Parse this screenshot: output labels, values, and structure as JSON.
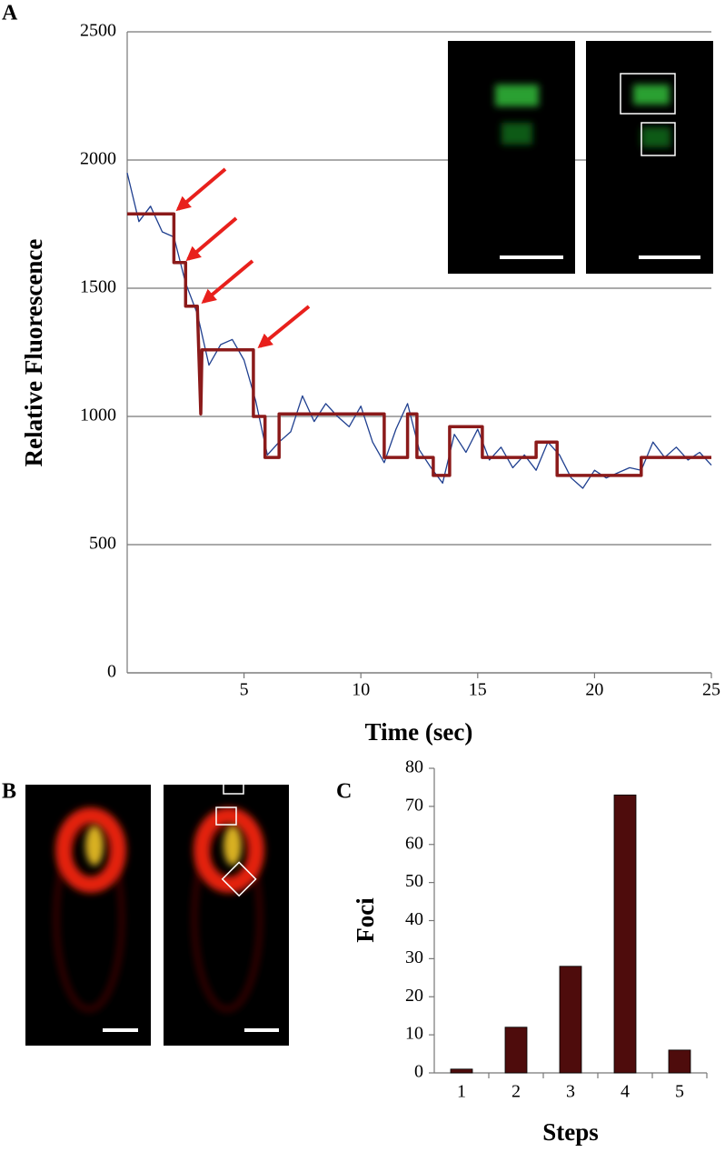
{
  "panels": [
    "A",
    "B",
    "C"
  ],
  "chart_data": [
    {
      "type": "line",
      "xlabel": "Time (sec)",
      "ylabel": "Relative Fluorescence",
      "xlim": [
        0,
        25
      ],
      "xticks": [
        5,
        10,
        15,
        20,
        25
      ],
      "ylim": [
        0,
        2500
      ],
      "yticks": [
        0,
        500,
        1000,
        1500,
        2000,
        2500
      ],
      "grid": true,
      "series": [
        {
          "color": "#1f3f8f",
          "width": 1.3,
          "x": [
            0,
            0.5,
            1,
            1.5,
            2,
            2.5,
            3,
            3.5,
            4,
            4.5,
            5,
            5.5,
            6,
            6.5,
            7,
            7.5,
            8,
            8.5,
            9,
            9.5,
            10,
            10.5,
            11,
            11.5,
            12,
            12.5,
            13,
            13.5,
            14,
            14.5,
            15,
            15.5,
            16,
            16.5,
            17,
            17.5,
            18,
            18.5,
            19,
            19.5,
            20,
            20.5,
            21,
            21.5,
            22,
            22.5,
            23,
            23.5,
            24,
            24.5,
            25
          ],
          "values": [
            1950,
            1760,
            1820,
            1720,
            1700,
            1520,
            1400,
            1200,
            1280,
            1300,
            1220,
            1060,
            850,
            900,
            940,
            1080,
            980,
            1050,
            1000,
            960,
            1040,
            900,
            820,
            950,
            1050,
            870,
            800,
            740,
            930,
            860,
            950,
            830,
            880,
            800,
            850,
            790,
            900,
            850,
            760,
            720,
            790,
            760,
            780,
            800,
            790,
            900,
            840,
            880,
            830,
            860,
            810
          ]
        },
        {
          "color": "#8b1a1a",
          "width": 3.5,
          "x": [
            0,
            2,
            2,
            2.5,
            2.5,
            3,
            3.15,
            3.2,
            5.4,
            5.4,
            5.9,
            5.9,
            6.5,
            6.5,
            11,
            11,
            12,
            12,
            12.4,
            12.4,
            13.1,
            13.1,
            13.8,
            13.8,
            15.2,
            15.2,
            17.5,
            17.5,
            18.4,
            18.4,
            22,
            22,
            25
          ],
          "values": [
            1790,
            1790,
            1600,
            1600,
            1430,
            1430,
            1010,
            1260,
            1260,
            1000,
            1000,
            840,
            840,
            1010,
            1010,
            840,
            840,
            1010,
            1010,
            840,
            840,
            770,
            770,
            960,
            960,
            840,
            840,
            900,
            900,
            770,
            770,
            840,
            840
          ]
        }
      ]
    },
    {
      "type": "bar",
      "xlabel": "Steps",
      "ylabel": "Foci",
      "categories": [
        "1",
        "2",
        "3",
        "4",
        "5"
      ],
      "values": [
        1,
        12,
        28,
        73,
        6
      ],
      "color": "#4e0c0c",
      "ylim": [
        0,
        80
      ],
      "yticks": [
        0,
        10,
        20,
        30,
        40,
        50,
        60,
        70,
        80
      ],
      "grid": false
    }
  ]
}
